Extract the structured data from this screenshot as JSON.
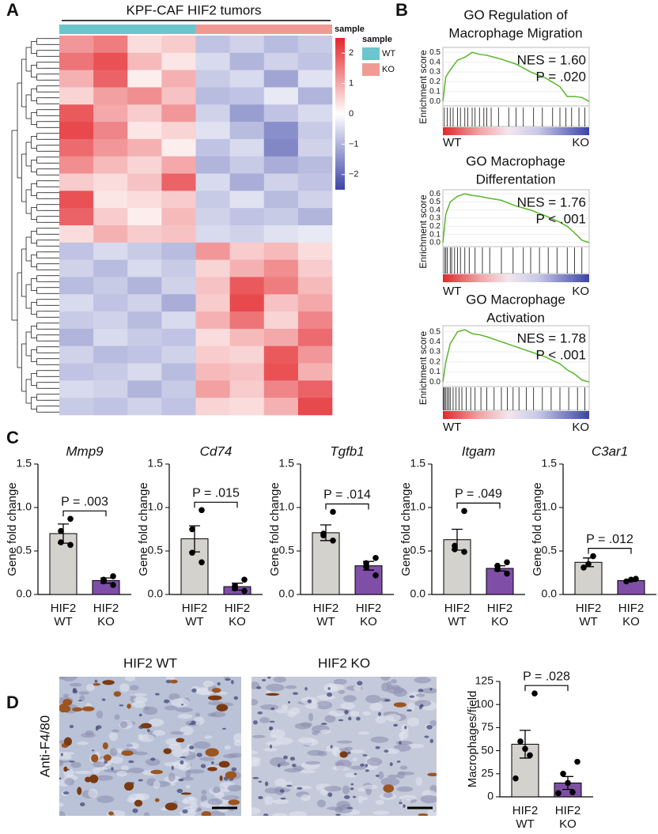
{
  "panels": [
    "A",
    "B",
    "C",
    "D"
  ],
  "micrographs": {
    "titles": [
      "HIF2 WT",
      "HIF2 KO"
    ],
    "stain": "Anti-F4/80"
  },
  "chart_data": [
    {
      "type": "heatmap",
      "title": "KPF-CAF HIF2 tumors",
      "annotation_label": "sample",
      "legend_title": "sample",
      "groups": [
        {
          "name": "WT",
          "color": "#6cc5cc"
        },
        {
          "name": "KO",
          "color": "#ef9b93"
        }
      ],
      "colors": {
        "low": "#3b44a6",
        "mid": "#ffffff",
        "high": "#e3262a"
      },
      "clim": [
        -2.5,
        2.5
      ],
      "cticks": [
        2,
        1,
        0,
        {
          "value": -1,
          "label": "−1"
        },
        {
          "value": -2,
          "label": "−2"
        }
      ],
      "values": [
        [
          1.2,
          1.5,
          0.4,
          0.6,
          -0.8,
          -0.6,
          -0.9,
          -0.7
        ],
        [
          1.6,
          2.0,
          0.8,
          0.3,
          -0.5,
          -1.0,
          -0.6,
          -0.8
        ],
        [
          0.9,
          1.8,
          0.2,
          0.9,
          -0.7,
          -0.5,
          -1.2,
          -0.4
        ],
        [
          0.5,
          1.1,
          1.3,
          0.7,
          -0.9,
          -0.8,
          -0.3,
          -1.0
        ],
        [
          1.9,
          1.0,
          0.6,
          1.2,
          -0.6,
          -1.3,
          -0.8,
          -0.5
        ],
        [
          2.1,
          1.4,
          0.3,
          0.5,
          -0.4,
          -0.9,
          -1.5,
          -0.7
        ],
        [
          1.7,
          1.2,
          0.9,
          0.2,
          -0.8,
          -0.5,
          -1.6,
          -0.6
        ],
        [
          1.3,
          0.8,
          0.5,
          1.0,
          -1.0,
          -0.7,
          -1.1,
          -0.9
        ],
        [
          0.6,
          0.4,
          0.7,
          1.8,
          -0.5,
          -1.1,
          -0.6,
          -0.8
        ],
        [
          2.0,
          0.3,
          0.4,
          0.6,
          -0.7,
          -0.4,
          -0.9,
          -0.6
        ],
        [
          1.8,
          0.6,
          0.2,
          0.8,
          -0.6,
          -0.8,
          -0.7,
          -1.0
        ],
        [
          0.4,
          0.9,
          0.6,
          0.7,
          -0.5,
          -0.6,
          -0.4,
          -0.3
        ],
        [
          -0.8,
          -0.5,
          -0.7,
          -0.9,
          1.2,
          0.6,
          0.8,
          0.4
        ],
        [
          -0.6,
          -0.9,
          -0.5,
          -0.7,
          0.5,
          0.9,
          1.3,
          0.6
        ],
        [
          -0.9,
          -0.7,
          -1.0,
          -0.6,
          0.7,
          1.9,
          1.5,
          0.8
        ],
        [
          -0.5,
          -0.8,
          -0.6,
          -1.1,
          0.6,
          2.1,
          0.7,
          1.0
        ],
        [
          -0.7,
          -0.6,
          -0.9,
          -0.5,
          0.9,
          1.6,
          0.5,
          1.4
        ],
        [
          -1.0,
          -0.5,
          -0.7,
          -0.8,
          0.4,
          0.8,
          1.0,
          1.7
        ],
        [
          -0.6,
          -0.9,
          -0.8,
          -0.6,
          0.6,
          0.5,
          1.9,
          1.2
        ],
        [
          -0.8,
          -0.7,
          -0.5,
          -0.9,
          0.8,
          0.7,
          2.0,
          0.9
        ],
        [
          -0.5,
          -0.6,
          -1.0,
          -0.7,
          1.1,
          0.6,
          1.4,
          1.8
        ],
        [
          -0.7,
          -0.8,
          -0.6,
          -0.8,
          0.5,
          0.4,
          0.9,
          2.1
        ]
      ]
    },
    {
      "type": "gsea",
      "title": [
        "GO Regulation of",
        "Macrophage Migration"
      ],
      "nes_label": "NES = 1.60",
      "p_label": "P = .020",
      "ylabel": "Enrichment score",
      "color": "#5ab52c",
      "ends": [
        {
          "name": "WT",
          "color": "#e3262a"
        },
        {
          "name": "KO",
          "color": "#3b44a6"
        }
      ],
      "xlim": [
        0,
        1
      ],
      "ylim": [
        -0.03,
        0.55
      ],
      "yticks": [
        {
          "value": 0,
          "label": "0.0"
        },
        {
          "value": 0.1,
          "label": "0.1"
        },
        {
          "value": 0.2,
          "label": "0.2"
        },
        {
          "value": 0.3,
          "label": "0.3"
        },
        {
          "value": 0.4,
          "label": "0.4"
        },
        {
          "value": 0.5,
          "label": "0.5"
        }
      ],
      "x": [
        0,
        0.02,
        0.05,
        0.1,
        0.15,
        0.2,
        0.25,
        0.3,
        0.4,
        0.5,
        0.6,
        0.7,
        0.8,
        0.85,
        0.9,
        0.95,
        1.0
      ],
      "values": [
        0,
        0.25,
        0.32,
        0.42,
        0.45,
        0.5,
        0.48,
        0.47,
        0.43,
        0.38,
        0.3,
        0.24,
        0.15,
        0.05,
        0.05,
        0.04,
        0
      ],
      "hits": [
        0.01,
        0.03,
        0.05,
        0.07,
        0.1,
        0.12,
        0.15,
        0.17,
        0.2,
        0.22,
        0.25,
        0.28,
        0.3,
        0.33,
        0.38,
        0.45,
        0.5,
        0.55,
        0.62,
        0.68,
        0.75,
        0.8,
        0.84,
        0.88,
        0.93,
        0.97
      ]
    },
    {
      "type": "gsea",
      "title": [
        "GO Macrophage",
        "Differentation"
      ],
      "nes_label": "NES = 1.76",
      "p_label": "P < .001",
      "ylabel": "Enrichment score",
      "color": "#5ab52c",
      "ends": [
        {
          "name": "WT",
          "color": "#e3262a"
        },
        {
          "name": "KO",
          "color": "#3b44a6"
        }
      ],
      "xlim": [
        0,
        1
      ],
      "ylim": [
        -0.03,
        0.65
      ],
      "yticks": [
        {
          "value": 0,
          "label": "0.0"
        },
        {
          "value": 0.1,
          "label": "0.1"
        },
        {
          "value": 0.2,
          "label": "0.2"
        },
        {
          "value": 0.3,
          "label": "0.3"
        },
        {
          "value": 0.4,
          "label": "0.4"
        },
        {
          "value": 0.5,
          "label": "0.5"
        },
        {
          "value": 0.6,
          "label": "0.6"
        }
      ],
      "x": [
        0,
        0.02,
        0.05,
        0.1,
        0.15,
        0.2,
        0.25,
        0.3,
        0.4,
        0.5,
        0.6,
        0.7,
        0.8,
        0.85,
        0.9,
        0.95,
        1.0
      ],
      "values": [
        0,
        0.35,
        0.5,
        0.57,
        0.6,
        0.58,
        0.57,
        0.55,
        0.52,
        0.45,
        0.4,
        0.33,
        0.25,
        0.2,
        0.12,
        0.03,
        0
      ],
      "hits": [
        0.01,
        0.02,
        0.03,
        0.05,
        0.06,
        0.08,
        0.1,
        0.12,
        0.15,
        0.18,
        0.22,
        0.27,
        0.32,
        0.4,
        0.48,
        0.55,
        0.6,
        0.66,
        0.72,
        0.78,
        0.85,
        0.9,
        0.95
      ]
    },
    {
      "type": "gsea",
      "title": [
        "GO Macrophage",
        "Activation"
      ],
      "nes_label": "NES = 1.78",
      "p_label": "P < .001",
      "ylabel": "Enrichment score",
      "color": "#5ab52c",
      "ends": [
        {
          "name": "WT",
          "color": "#e3262a"
        },
        {
          "name": "KO",
          "color": "#3b44a6"
        }
      ],
      "xlim": [
        0,
        1
      ],
      "ylim": [
        -0.03,
        0.56
      ],
      "yticks": [
        {
          "value": 0,
          "label": "0.0"
        },
        {
          "value": 0.1,
          "label": "0.1"
        },
        {
          "value": 0.2,
          "label": "0.2"
        },
        {
          "value": 0.3,
          "label": "0.3"
        },
        {
          "value": 0.4,
          "label": "0.4"
        },
        {
          "value": 0.5,
          "label": "0.5"
        }
      ],
      "x": [
        0,
        0.02,
        0.05,
        0.1,
        0.15,
        0.2,
        0.25,
        0.3,
        0.4,
        0.5,
        0.6,
        0.7,
        0.8,
        0.85,
        0.9,
        0.95,
        1.0
      ],
      "values": [
        0,
        0.2,
        0.38,
        0.5,
        0.52,
        0.48,
        0.47,
        0.45,
        0.4,
        0.35,
        0.3,
        0.25,
        0.18,
        0.12,
        0.08,
        0.02,
        0
      ],
      "hits": [
        0.005,
        0.01,
        0.02,
        0.03,
        0.04,
        0.05,
        0.07,
        0.09,
        0.11,
        0.13,
        0.16,
        0.19,
        0.22,
        0.26,
        0.3,
        0.35,
        0.4,
        0.44,
        0.48,
        0.52,
        0.57,
        0.62,
        0.68,
        0.74,
        0.8,
        0.86,
        0.92,
        0.97
      ]
    },
    {
      "type": "bar",
      "title": "Mmp9",
      "ylabel": "Gene fold change",
      "p_label": "P = .003",
      "categories": [
        [
          "HIF2",
          "WT"
        ],
        [
          "HIF2",
          "KO"
        ]
      ],
      "colors": [
        "#d4d2cd",
        "#7f4fa8"
      ],
      "values": [
        0.7,
        0.16
      ],
      "errors": [
        0.11,
        0.03
      ],
      "points": [
        [
          0.87,
          0.73,
          0.6,
          0.57
        ],
        [
          0.21,
          0.17,
          0.15,
          0.11
        ]
      ],
      "ylim": [
        0,
        1.5
      ],
      "yticks": [
        {
          "value": 0,
          "label": "0.0"
        },
        {
          "value": 0.5,
          "label": "0.5"
        },
        {
          "value": 1,
          "label": "1.0"
        },
        {
          "value": 1.5,
          "label": "1.5"
        }
      ]
    },
    {
      "type": "bar",
      "title": "Cd74",
      "ylabel": "Gene fold change",
      "p_label": "P = .015",
      "categories": [
        [
          "HIF2",
          "WT"
        ],
        [
          "HIF2",
          "KO"
        ]
      ],
      "colors": [
        "#d4d2cd",
        "#7f4fa8"
      ],
      "values": [
        0.64,
        0.09
      ],
      "errors": [
        0.15,
        0.04
      ],
      "points": [
        [
          0.97,
          0.75,
          0.48,
          0.37
        ],
        [
          0.17,
          0.1,
          0.07,
          0.04
        ]
      ],
      "ylim": [
        0,
        1.5
      ],
      "yticks": [
        {
          "value": 0,
          "label": "0.0"
        },
        {
          "value": 0.5,
          "label": "0.5"
        },
        {
          "value": 1,
          "label": "1.0"
        },
        {
          "value": 1.5,
          "label": "1.5"
        }
      ]
    },
    {
      "type": "bar",
      "title": "Tgfb1",
      "ylabel": "Gene fold change",
      "p_label": "P = .014",
      "categories": [
        [
          "HIF2",
          "WT"
        ],
        [
          "HIF2",
          "KO"
        ]
      ],
      "colors": [
        "#d4d2cd",
        "#7f4fa8"
      ],
      "values": [
        0.71,
        0.33
      ],
      "errors": [
        0.09,
        0.05
      ],
      "points": [
        [
          0.95,
          0.7,
          0.68,
          0.62
        ],
        [
          0.42,
          0.36,
          0.32,
          0.22
        ]
      ],
      "ylim": [
        0,
        1.5
      ],
      "yticks": [
        {
          "value": 0,
          "label": "0.0"
        },
        {
          "value": 0.5,
          "label": "0.5"
        },
        {
          "value": 1,
          "label": "1.0"
        },
        {
          "value": 1.5,
          "label": "1.5"
        }
      ]
    },
    {
      "type": "bar",
      "title": "Itgam",
      "ylabel": "Gene fold change",
      "p_label": "P = .049",
      "categories": [
        [
          "HIF2",
          "WT"
        ],
        [
          "HIF2",
          "KO"
        ]
      ],
      "colors": [
        "#d4d2cd",
        "#7f4fa8"
      ],
      "values": [
        0.63,
        0.3
      ],
      "errors": [
        0.12,
        0.03
      ],
      "points": [
        [
          0.96,
          0.56,
          0.52,
          0.49
        ],
        [
          0.37,
          0.33,
          0.29,
          0.24
        ]
      ],
      "ylim": [
        0,
        1.5
      ],
      "yticks": [
        {
          "value": 0,
          "label": "0.0"
        },
        {
          "value": 0.5,
          "label": "0.5"
        },
        {
          "value": 1,
          "label": "1.0"
        },
        {
          "value": 1.5,
          "label": "1.5"
        }
      ]
    },
    {
      "type": "bar",
      "title": "C3ar1",
      "ylabel": "Gene fold change",
      "p_label": "P = .012",
      "categories": [
        [
          "HIF2",
          "WT"
        ],
        [
          "HIF2",
          "KO"
        ]
      ],
      "colors": [
        "#d4d2cd",
        "#7f4fa8"
      ],
      "values": [
        0.37,
        0.16
      ],
      "errors": [
        0.05,
        0.01
      ],
      "points": [
        [
          0.44,
          0.35,
          0.31
        ],
        [
          0.18,
          0.17,
          0.15
        ]
      ],
      "ylim": [
        0,
        1.5
      ],
      "yticks": [
        {
          "value": 0,
          "label": "0.0"
        },
        {
          "value": 0.5,
          "label": "0.5"
        },
        {
          "value": 1,
          "label": "1.0"
        },
        {
          "value": 1.5,
          "label": "1.5"
        }
      ]
    },
    {
      "type": "bar",
      "ylabel": "Macrophages/field",
      "p_label": "P = .028",
      "categories": [
        [
          "HIF2",
          "WT"
        ],
        [
          "HIF2",
          "KO"
        ]
      ],
      "colors": [
        "#d4d2cd",
        "#7f4fa8"
      ],
      "values": [
        57,
        15
      ],
      "errors": [
        15,
        7
      ],
      "points": [
        [
          112,
          60,
          52,
          45,
          20
        ],
        [
          38,
          25,
          15,
          5,
          4
        ]
      ],
      "ylim": [
        0,
        125
      ],
      "yticks": [
        0,
        25,
        50,
        75,
        100,
        125
      ]
    }
  ]
}
